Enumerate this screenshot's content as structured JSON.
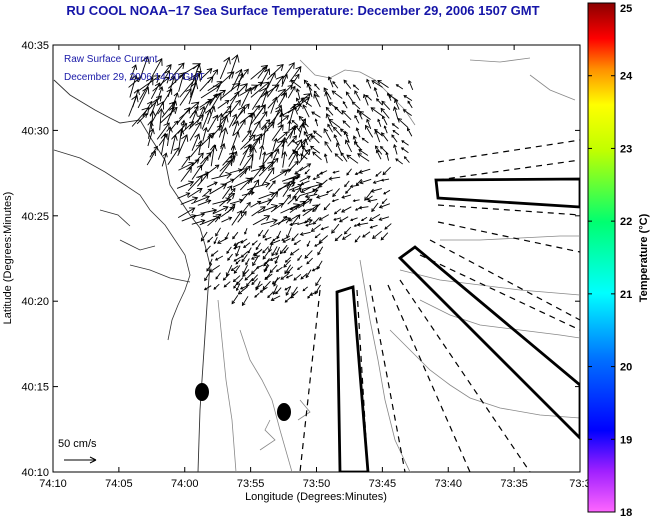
{
  "title": "RU COOL  NOAA−17  Sea Surface Temperature:  December 29, 2006 1507 GMT",
  "notes": {
    "line1": "Raw Surface Current",
    "line2": "December 29, 2006 14:00 GMT"
  },
  "axes": {
    "xlabel": "Longitude (Degrees:Minutes)",
    "ylabel": "Latitude (Degrees:Minutes)",
    "xticks": [
      "74:10",
      "74:05",
      "74:00",
      "73:55",
      "73:50",
      "73:45",
      "73:40",
      "73:35",
      "73:3"
    ],
    "yticks": [
      "40:35",
      "40:30",
      "40:25",
      "40:20",
      "40:15",
      "40:10"
    ]
  },
  "scale": {
    "label": "50 cm/s"
  },
  "colorbar": {
    "label": "Temperature (°C)",
    "ticks": [
      "25",
      "24",
      "23",
      "22",
      "21",
      "20",
      "19",
      "18"
    ],
    "range": [
      18,
      25
    ]
  }
}
